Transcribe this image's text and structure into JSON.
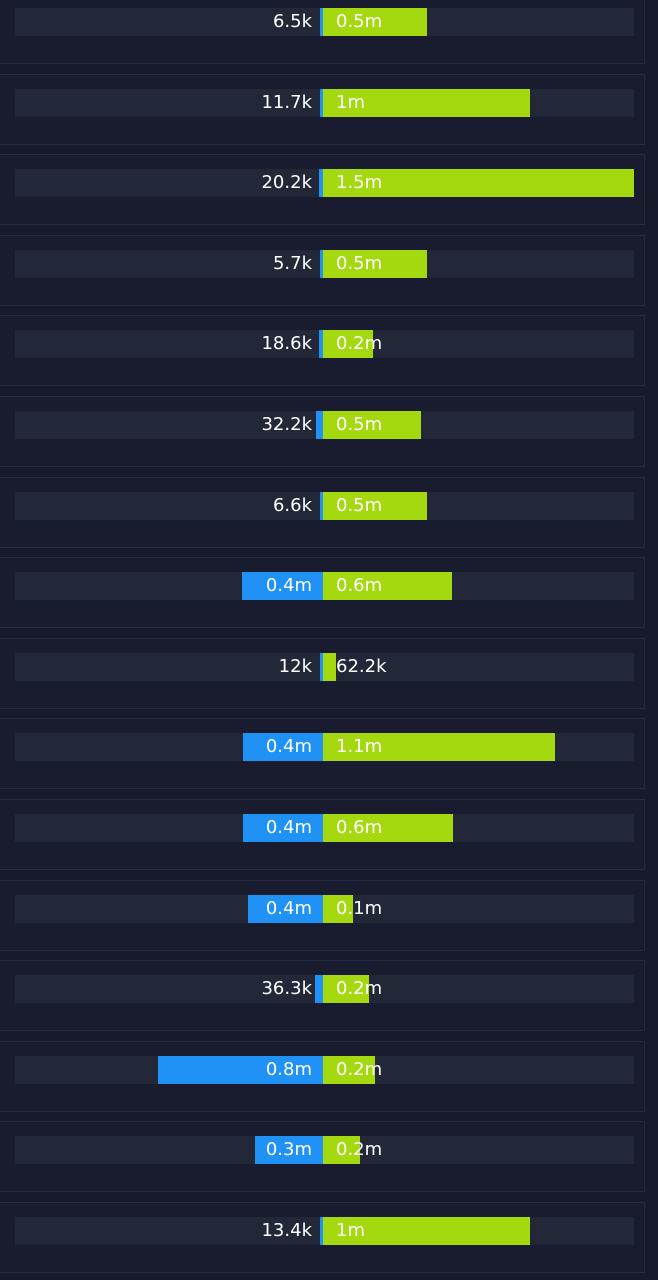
{
  "chart_data": {
    "type": "bar",
    "orientation": "horizontal-diverging",
    "grid": false,
    "colors": {
      "left": "#2092f5",
      "right": "#a4d90f",
      "track": "#232838",
      "background": "#161a2b"
    },
    "right_axis_max": 1500000,
    "rows": [
      {
        "left_value": 6500,
        "left_label": "6.5k",
        "right_value": 500000,
        "right_label": "0.5m"
      },
      {
        "left_value": 11700,
        "left_label": "11.7k",
        "right_value": 1000000,
        "right_label": "1m"
      },
      {
        "left_value": 20200,
        "left_label": "20.2k",
        "right_value": 1500000,
        "right_label": "1.5m"
      },
      {
        "left_value": 5700,
        "left_label": "5.7k",
        "right_value": 500000,
        "right_label": "0.5m"
      },
      {
        "left_value": 18600,
        "left_label": "18.6k",
        "right_value": 240000,
        "right_label": "0.2m"
      },
      {
        "left_value": 32200,
        "left_label": "32.2k",
        "right_value": 475000,
        "right_label": "0.5m"
      },
      {
        "left_value": 6600,
        "left_label": "6.6k",
        "right_value": 500000,
        "right_label": "0.5m"
      },
      {
        "left_value": 390000,
        "left_label": "0.4m",
        "right_value": 620000,
        "right_label": "0.6m"
      },
      {
        "left_value": 12000,
        "left_label": "12k",
        "right_value": 62200,
        "right_label": "62.2k"
      },
      {
        "left_value": 385000,
        "left_label": "0.4m",
        "right_value": 1120000,
        "right_label": "1.1m"
      },
      {
        "left_value": 385000,
        "left_label": "0.4m",
        "right_value": 625000,
        "right_label": "0.6m"
      },
      {
        "left_value": 360000,
        "left_label": "0.4m",
        "right_value": 145000,
        "right_label": "0.1m"
      },
      {
        "left_value": 36300,
        "left_label": "36.3k",
        "right_value": 220000,
        "right_label": "0.2m"
      },
      {
        "left_value": 795000,
        "left_label": "0.8m",
        "right_value": 250000,
        "right_label": "0.2m"
      },
      {
        "left_value": 330000,
        "left_label": "0.3m",
        "right_value": 180000,
        "right_label": "0.2m"
      },
      {
        "left_value": 13400,
        "left_label": "13.4k",
        "right_value": 1000000,
        "right_label": "1m"
      }
    ]
  }
}
